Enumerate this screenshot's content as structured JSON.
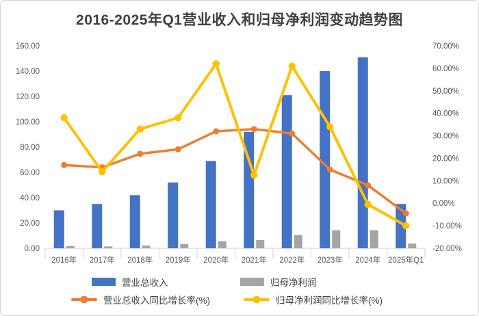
{
  "title": "2016-2025年Q1营业收入和归母净利润变动趋势图",
  "colors": {
    "revenue_bar": "#4472C4",
    "profit_bar": "#A5A5A5",
    "revenue_growth_line": "#ED7D31",
    "profit_growth_line": "#FFC000",
    "axis_text": "#595959",
    "title_text": "#404040",
    "axis_line": "#D9D9D9"
  },
  "chart_data": {
    "type": "combo-bar-line",
    "title": "2016-2025年Q1营业收入和归母净利润变动趋势图",
    "categories": [
      "2016年",
      "2017年",
      "2018年",
      "2019年",
      "2020年",
      "2021年",
      "2022年",
      "2023年",
      "2024年",
      "2025年Q1"
    ],
    "bar_series": [
      {
        "name": "营业总收入",
        "axis": "left",
        "color": "revenue_bar",
        "values": [
          30,
          35,
          42,
          52,
          69,
          92,
          121,
          140,
          151,
          35
        ]
      },
      {
        "name": "归母净利润",
        "axis": "left",
        "color": "profit_bar",
        "values": [
          1.7,
          1.5,
          2.2,
          3.3,
          5.6,
          6.5,
          10.5,
          14.3,
          14.3,
          3.8
        ]
      }
    ],
    "line_series": [
      {
        "name": "营业总收入同比增长率(%)",
        "axis": "right",
        "color": "revenue_growth_line",
        "values": [
          17,
          16,
          22,
          24,
          32,
          33,
          31,
          15,
          8,
          -4.5
        ]
      },
      {
        "name": "归母净利润同比增长率(%)",
        "axis": "right",
        "color": "profit_growth_line",
        "values": [
          38,
          14,
          33,
          38,
          62,
          12.5,
          61,
          34,
          -0.5,
          -10
        ]
      }
    ],
    "left_axis": {
      "min": 0,
      "max": 160,
      "step": 20,
      "tick_labels": [
        "0.00",
        "20.00",
        "40.00",
        "60.00",
        "80.00",
        "100.00",
        "120.00",
        "140.00",
        "160.00"
      ]
    },
    "right_axis": {
      "min": -20,
      "max": 70,
      "step": 10,
      "tick_labels": [
        "-20.00%",
        "-10.00%",
        "0.00%",
        "10.00%",
        "20.00%",
        "30.00%",
        "40.00%",
        "50.00%",
        "60.00%",
        "70.00%"
      ]
    },
    "grid": false,
    "legend_position": "bottom"
  }
}
